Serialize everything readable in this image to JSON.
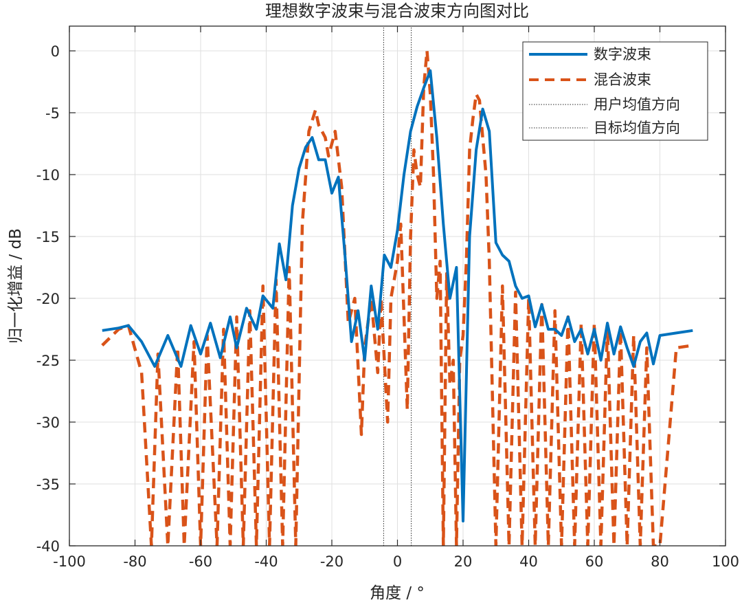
{
  "chart_data": {
    "type": "line",
    "title": "理想数字波束与混合波束方向图对比",
    "xlabel": "角度 / °",
    "ylabel": "归一化增益 / dB",
    "xlim": [
      -100,
      100
    ],
    "ylim": [
      -40,
      2
    ],
    "xticks": [
      -100,
      -80,
      -60,
      -40,
      -20,
      0,
      20,
      40,
      60,
      80,
      100
    ],
    "yticks": [
      0,
      -5,
      -10,
      -15,
      -20,
      -25,
      -30,
      -35,
      -40
    ],
    "grid": true,
    "legend_position": "top-right",
    "series": [
      {
        "name": "数字波束",
        "style": "solid",
        "color": "#0072BD",
        "x": [
          -90,
          -85,
          -82,
          -78,
          -74,
          -70,
          -66,
          -63,
          -60,
          -57,
          -54,
          -51,
          -49,
          -46,
          -43,
          -41,
          -38,
          -36,
          -34,
          -32,
          -30,
          -28,
          -26,
          -24,
          -22,
          -20,
          -18,
          -16,
          -14,
          -12,
          -10,
          -8,
          -6,
          -4,
          -2,
          0,
          2,
          4,
          6,
          8,
          10,
          12,
          14,
          16,
          18,
          20,
          22,
          24,
          26,
          28,
          30,
          32,
          34,
          36,
          38,
          40,
          42,
          44,
          46,
          48,
          50,
          52,
          54,
          56,
          58,
          60,
          62,
          64,
          66,
          68,
          70,
          72,
          74,
          76,
          78,
          80,
          85,
          90
        ],
        "y": [
          -22.6,
          -22.4,
          -22.2,
          -23.5,
          -25.5,
          -23.0,
          -25.5,
          -22.2,
          -24.5,
          -22.0,
          -24.8,
          -21.5,
          -24.0,
          -20.8,
          -22.5,
          -19.8,
          -20.8,
          -15.6,
          -18.5,
          -12.5,
          -9.5,
          -7.8,
          -7.0,
          -8.8,
          -8.8,
          -11.5,
          -10.2,
          -16.5,
          -23.5,
          -21.0,
          -25.0,
          -19.0,
          -22.5,
          -16.5,
          -17.5,
          -14.5,
          -10.0,
          -6.5,
          -4.5,
          -3.0,
          -1.6,
          -7.0,
          -14.0,
          -20.0,
          -17.5,
          -38.0,
          -15.0,
          -8.0,
          -4.7,
          -6.5,
          -15.5,
          -16.5,
          -17.0,
          -19.0,
          -20.0,
          -19.8,
          -22.3,
          -20.5,
          -22.5,
          -22.5,
          -23.0,
          -21.5,
          -23.5,
          -22.5,
          -24.5,
          -22.5,
          -25.0,
          -22.0,
          -24.5,
          -22.3,
          -24.0,
          -25.5,
          -23.5,
          -22.8,
          -25.3,
          -23.0,
          -22.8,
          -22.6
        ]
      },
      {
        "name": "混合波束",
        "style": "dashed",
        "color": "#D95319",
        "x": [
          -90,
          -85,
          -82,
          -78,
          -75,
          -73,
          -70,
          -67,
          -65,
          -62,
          -60,
          -58,
          -55,
          -53,
          -51,
          -49,
          -47,
          -45,
          -43,
          -41,
          -39,
          -37,
          -35,
          -33,
          -31,
          -29,
          -27,
          -25,
          -24,
          -22,
          -21,
          -19,
          -17,
          -15,
          -13,
          -11,
          -10,
          -8,
          -6,
          -5,
          -3,
          -2,
          0,
          1,
          3,
          4,
          5,
          6,
          7,
          8,
          9,
          10,
          11,
          12,
          13,
          14,
          15,
          16,
          17,
          18,
          19,
          20,
          21,
          22,
          23,
          24,
          25,
          26,
          27,
          28,
          30,
          32,
          34,
          36,
          38,
          40,
          42,
          44,
          46,
          48,
          50,
          52,
          54,
          56,
          58,
          60,
          62,
          64,
          66,
          68,
          70,
          72,
          74,
          76,
          78,
          80,
          85,
          90
        ],
        "y": [
          -23.8,
          -22.5,
          -22.2,
          -26.0,
          -40,
          -24.5,
          -40,
          -24.0,
          -40,
          -23.5,
          -40,
          -23.0,
          -40,
          -22.5,
          -40,
          -21.5,
          -40,
          -21.0,
          -40,
          -19.0,
          -40,
          -18.5,
          -40,
          -17.5,
          -40,
          -14.0,
          -6.5,
          -4.8,
          -6.0,
          -7.0,
          -8.5,
          -6.5,
          -11.0,
          -22.0,
          -20.0,
          -31.0,
          -24.0,
          -20.0,
          -26.0,
          -20.0,
          -30.0,
          -20.0,
          -17.0,
          -14.0,
          -29.0,
          -15.0,
          -8.0,
          -10.0,
          -11.0,
          -3.0,
          0,
          -3.5,
          -10.0,
          -20.0,
          -17.0,
          -40,
          -18.0,
          -27.0,
          -25.0,
          -40,
          -25.0,
          -23.0,
          -17.0,
          -8.0,
          -5.5,
          -3.5,
          -4.0,
          -7.0,
          -10.0,
          -17.0,
          -40,
          -19.0,
          -40,
          -19.5,
          -40,
          -20.0,
          -40,
          -20.5,
          -40,
          -21.0,
          -40,
          -21.5,
          -40,
          -22.0,
          -40,
          -22.0,
          -40,
          -22.3,
          -40,
          -22.6,
          -40,
          -23.0,
          -40,
          -24.0,
          -40,
          -40,
          -24.0,
          -23.8
        ]
      },
      {
        "name": "用户均值方向",
        "style": "dotted",
        "color": "#262626",
        "x": [
          -4.2,
          -4.2
        ],
        "y": [
          -40,
          2
        ]
      },
      {
        "name": "目标均值方向",
        "style": "dotted",
        "color": "#262626",
        "x": [
          4.2,
          4.2
        ],
        "y": [
          -40,
          2
        ]
      }
    ]
  }
}
